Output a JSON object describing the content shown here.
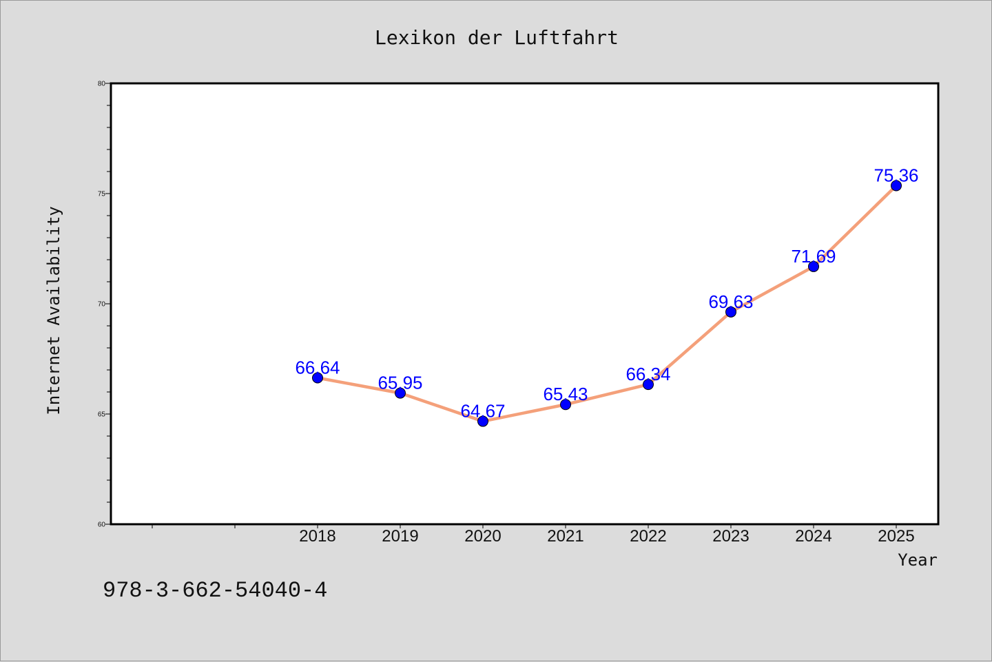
{
  "chart_data": {
    "type": "line",
    "title": "Lexikon der Luftfahrt",
    "xlabel": "Year",
    "ylabel": "Internet Availability",
    "ylim": [
      60,
      80
    ],
    "yticks": [
      60,
      65,
      70,
      75,
      80
    ],
    "x": [
      "2018",
      "2019",
      "2020",
      "2021",
      "2022",
      "2023",
      "2024",
      "2025"
    ],
    "series": [
      {
        "values": [
          66.64,
          65.95,
          64.67,
          65.43,
          66.34,
          69.63,
          71.69,
          75.36
        ],
        "labels": [
          "66.64",
          "65.95",
          "64.67",
          "65.43",
          "66.34",
          "69.63",
          "71.69",
          "75.36"
        ]
      }
    ],
    "grid": false,
    "legend": "none",
    "colors": {
      "line": "#f4a07a",
      "marker": "#0000ff",
      "data_label": "#0000ff",
      "plot_bg": "#ffffff",
      "figure_bg": "#dcdcdc"
    }
  },
  "footer_text": "978-3-662-54040-4"
}
